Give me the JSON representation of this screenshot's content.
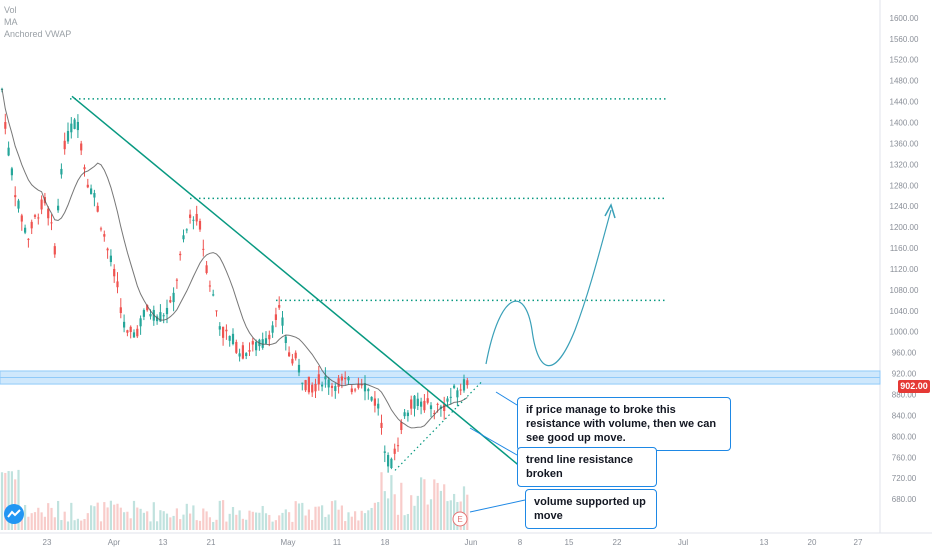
{
  "legend": {
    "vol": "Vol",
    "ma": "MA",
    "vwap": "Anchored VWAP"
  },
  "price_tag": "902.00",
  "earnings_badge": "E",
  "colors": {
    "up": "#26a69a",
    "down": "#ef5350",
    "trend": "#089981",
    "zone": "#90caf9",
    "callout_border": "#1e88e5",
    "arrow": "#3aa0b8",
    "ma": "#555555"
  },
  "callouts": [
    {
      "text": "if price manage to broke this resistance with volume, then we can see good up move."
    },
    {
      "text": "trend line resistance broken"
    },
    {
      "text": "volume supported up move"
    }
  ],
  "chart_data": {
    "type": "candlestick",
    "y_axis": {
      "ticks": [
        680,
        720,
        760,
        800,
        840,
        880,
        920,
        960,
        1000,
        1040,
        1080,
        1120,
        1160,
        1200,
        1240,
        1280,
        1320,
        1360,
        1400,
        1440,
        1480,
        1520,
        1560,
        1600
      ],
      "min": 665,
      "max": 1615
    },
    "x_axis": {
      "labels": [
        "23",
        "Apr",
        "13",
        "21",
        "May",
        "11",
        "18",
        "Jun",
        "8",
        "15",
        "22",
        "Jul",
        "13",
        "20",
        "27"
      ]
    },
    "resistance_levels": [
      1445,
      1255,
      1060
    ],
    "resistance_zone": [
      900,
      925
    ],
    "trend_line": {
      "from": {
        "label": "Mar 24",
        "price": 1450
      },
      "to": {
        "label": "Jun 5",
        "price": 738
      }
    },
    "last_price": 902.0,
    "candles": []
  }
}
